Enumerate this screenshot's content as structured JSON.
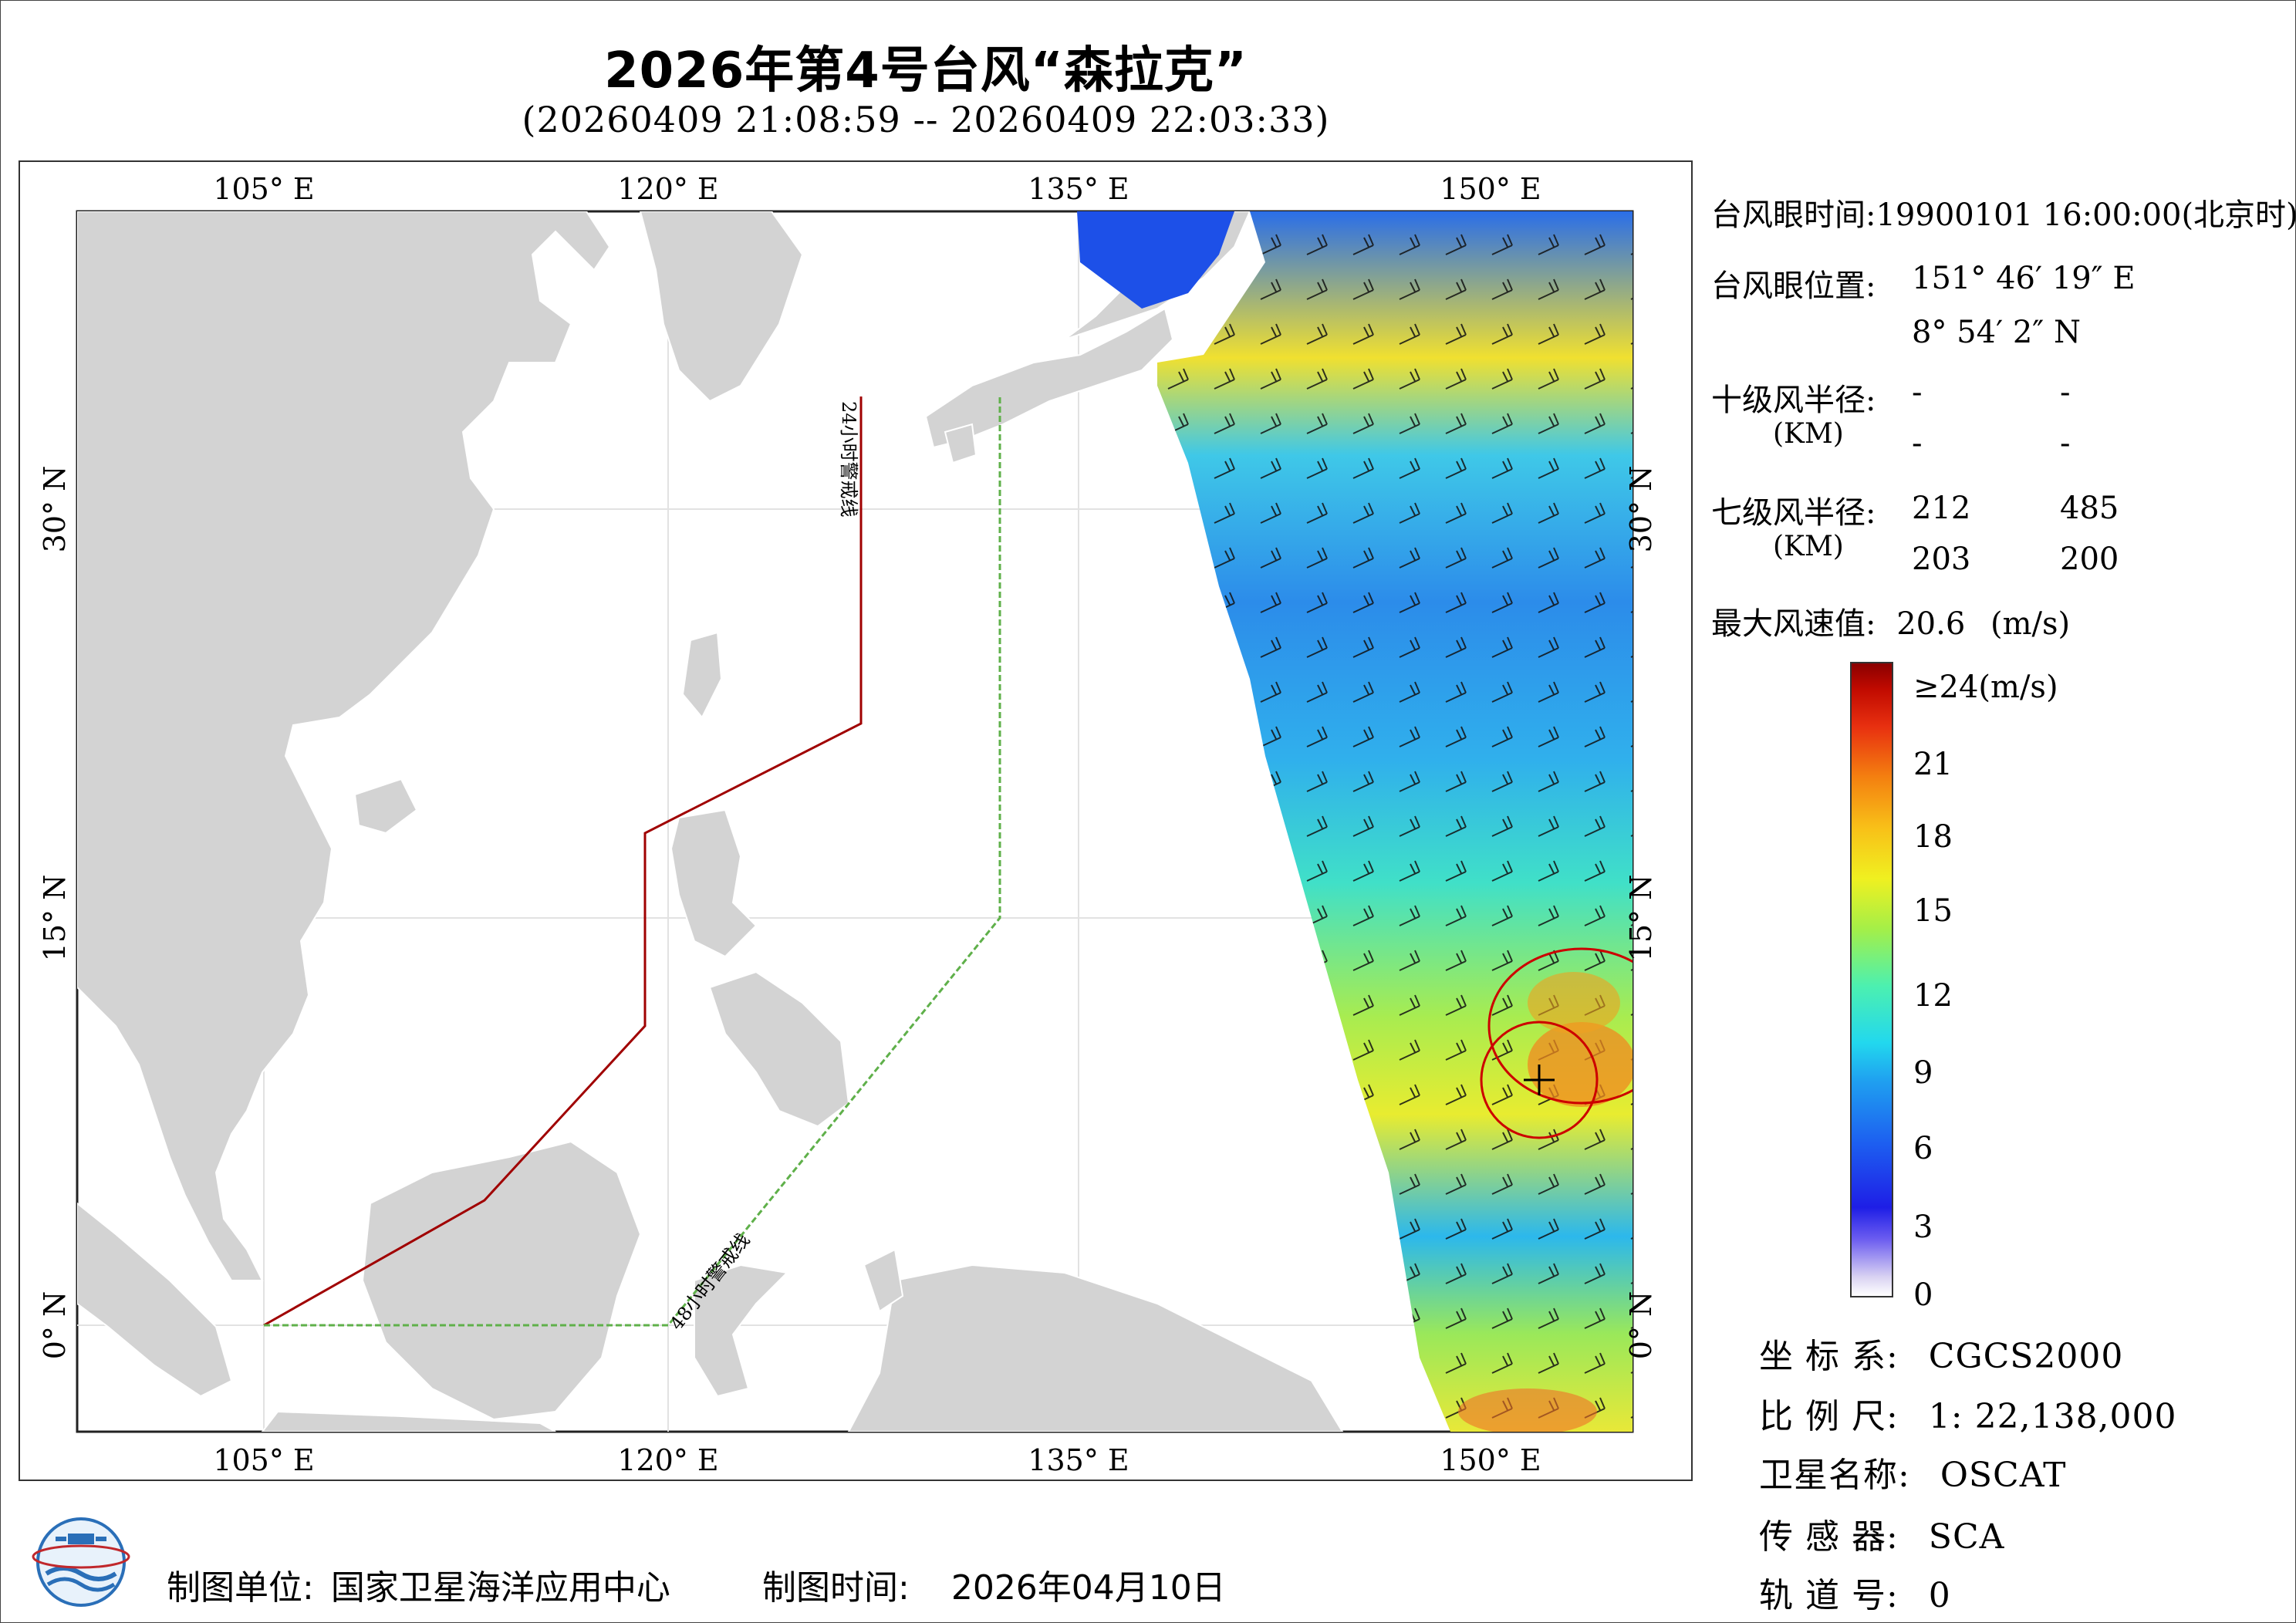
{
  "title": "2026年第4号台风“森拉克”",
  "subtitle": "(20260409 21:08:59 -- 20260409 22:03:33)",
  "map": {
    "top_lon_labels": [
      "105° E",
      "120° E",
      "135° E",
      "150° E"
    ],
    "bottom_lon_labels": [
      "105° E",
      "120° E",
      "135° E",
      "150° E"
    ],
    "left_lat_labels": [
      "30° N",
      "15° N",
      "0° N"
    ],
    "right_lat_labels": [
      "30° N",
      "15° N",
      "0° N"
    ],
    "warning_line_24h_label": "24小时警戒线",
    "warning_line_48h_label": "48小时警戒线",
    "colors": {
      "land": "#d3d3d3",
      "ocean": "#ffffff",
      "line_24h": "#a00000",
      "line_48h": "#5fb04a",
      "typhoon_circle": "#cc0000"
    }
  },
  "info": {
    "eye_time_label": "台风眼时间:",
    "eye_time_value": "19900101 16:00:00(北京时)",
    "eye_pos_label": "台风眼位置:",
    "eye_lon": "151° 46′ 19″ E",
    "eye_lat": "8° 54′ 2″ N",
    "r10_label": "十级风半径:",
    "r10_unit": "(KM)",
    "r10_values": [
      "-",
      "-",
      "-",
      "-"
    ],
    "r7_label": "七级风半径:",
    "r7_unit": "(KM)",
    "r7_values": [
      "212",
      "485",
      "203",
      "200"
    ],
    "max_wind_label": "最大风速值:",
    "max_wind_value": "20.6",
    "max_wind_unit": "(m/s)"
  },
  "colorbar": {
    "labels": [
      "≥24(m/s)",
      "21",
      "18",
      "15",
      "12",
      "9",
      "6",
      "3",
      "0"
    ]
  },
  "meta": {
    "crs_label": "坐 标 系:",
    "crs_value": "CGCS2000",
    "scale_label": "比 例 尺:",
    "scale_value": "1: 22,138,000",
    "satellite_label": "卫星名称:",
    "satellite_value": "OSCAT",
    "sensor_label": "传 感 器:",
    "sensor_value": "SCA",
    "orbit_label": "轨 道 号:",
    "orbit_value": "0"
  },
  "footer": {
    "producer_label": "制图单位:",
    "producer_value": "国家卫星海洋应用中心",
    "date_label": "制图时间:",
    "date_value": "2026年04月10日"
  }
}
